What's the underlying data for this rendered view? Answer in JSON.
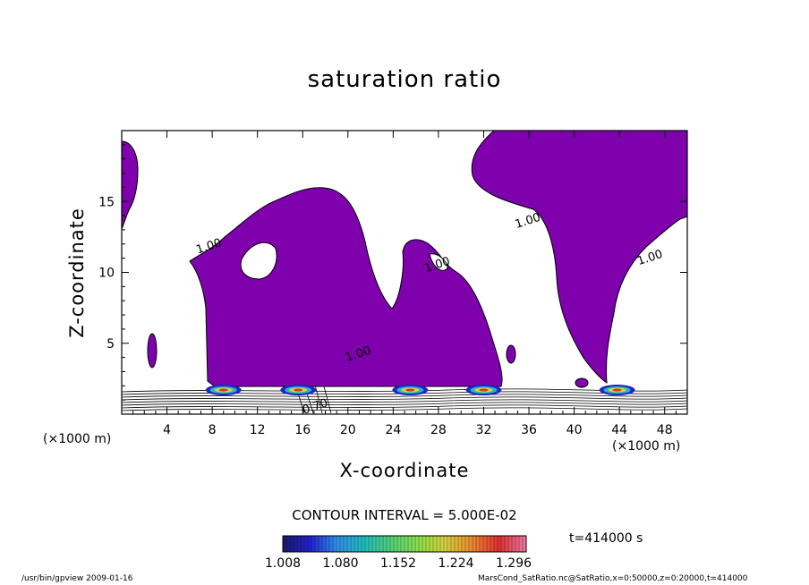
{
  "chart_data": {
    "type": "contour",
    "title": "saturation ratio",
    "xlabel": "X-coordinate",
    "ylabel": "Z-coordinate",
    "x_unit_label": "(×1000 m)",
    "xlim": [
      0,
      50
    ],
    "ylim": [
      0,
      20
    ],
    "x_ticks": [
      4,
      8,
      12,
      16,
      20,
      24,
      28,
      32,
      36,
      40,
      44,
      48
    ],
    "y_ticks": [
      5,
      10,
      15
    ],
    "contour_labels": [
      {
        "text": "1.00",
        "x": 7.8,
        "z": 11.6
      },
      {
        "text": "1.00",
        "x": 28.0,
        "z": 10.3
      },
      {
        "text": "1.00",
        "x": 36.0,
        "z": 13.4
      },
      {
        "text": "1.00",
        "x": 46.8,
        "z": 10.8
      },
      {
        "text": "1.00",
        "x": 21.0,
        "z": 4.0
      },
      {
        "text": "0.70",
        "x": 17.2,
        "z": 0.3
      }
    ],
    "contour_interval": "CONTOUR INTERVAL = 5.000E-02",
    "colorbar": {
      "ticks": [
        "1.008",
        "1.080",
        "1.152",
        "1.224",
        "1.296"
      ],
      "colors": [
        "#1a1a6e",
        "#2222cc",
        "#2f8fe8",
        "#22bcbc",
        "#4fd27a",
        "#8be04a",
        "#d8d040",
        "#ee8a2e",
        "#dd3030",
        "#f07aa8"
      ]
    },
    "region_color": "#7f00ad",
    "time": "t=414000 s",
    "hotspot_x": [
      9.0,
      15.6,
      25.5,
      32.0,
      43.8
    ]
  },
  "footer": {
    "left": "/usr/bin/gpview  2009-01-16",
    "right": "MarsCond_SatRatio.nc@SatRatio,x=0:50000,z=0:20000,t=414000"
  }
}
